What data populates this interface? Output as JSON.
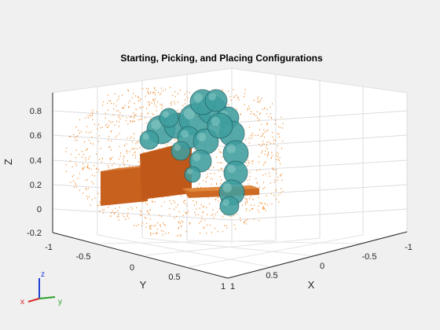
{
  "chart_data": {
    "type": "3d-scene",
    "title": "Starting, Picking, and Placing Configurations",
    "xlabel": "X",
    "ylabel": "Y",
    "zlabel": "Z",
    "xlim": [
      -1,
      1
    ],
    "ylim": [
      -1,
      1
    ],
    "zlim": [
      -0.2,
      1
    ],
    "x_ticks": [
      "1",
      "0.5",
      "0",
      "-0.5",
      "-1"
    ],
    "y_ticks": [
      "-1",
      "-0.5",
      "0",
      "0.5",
      "1"
    ],
    "z_ticks": [
      "-0.2",
      "0",
      "0.2",
      "0.4",
      "0.6",
      "0.8"
    ],
    "grid": true,
    "colors": {
      "point_cloud": "#f08a2c",
      "boxes": "#c8601e",
      "robot": "#3f9e9e",
      "robot_dark": "#1e5e64",
      "axis_x": "#d62728",
      "axis_y": "#2ca02c",
      "axis_z": "#1f3fd6"
    },
    "orientation_triad": {
      "x": "x",
      "y": "y",
      "z": "z"
    }
  }
}
